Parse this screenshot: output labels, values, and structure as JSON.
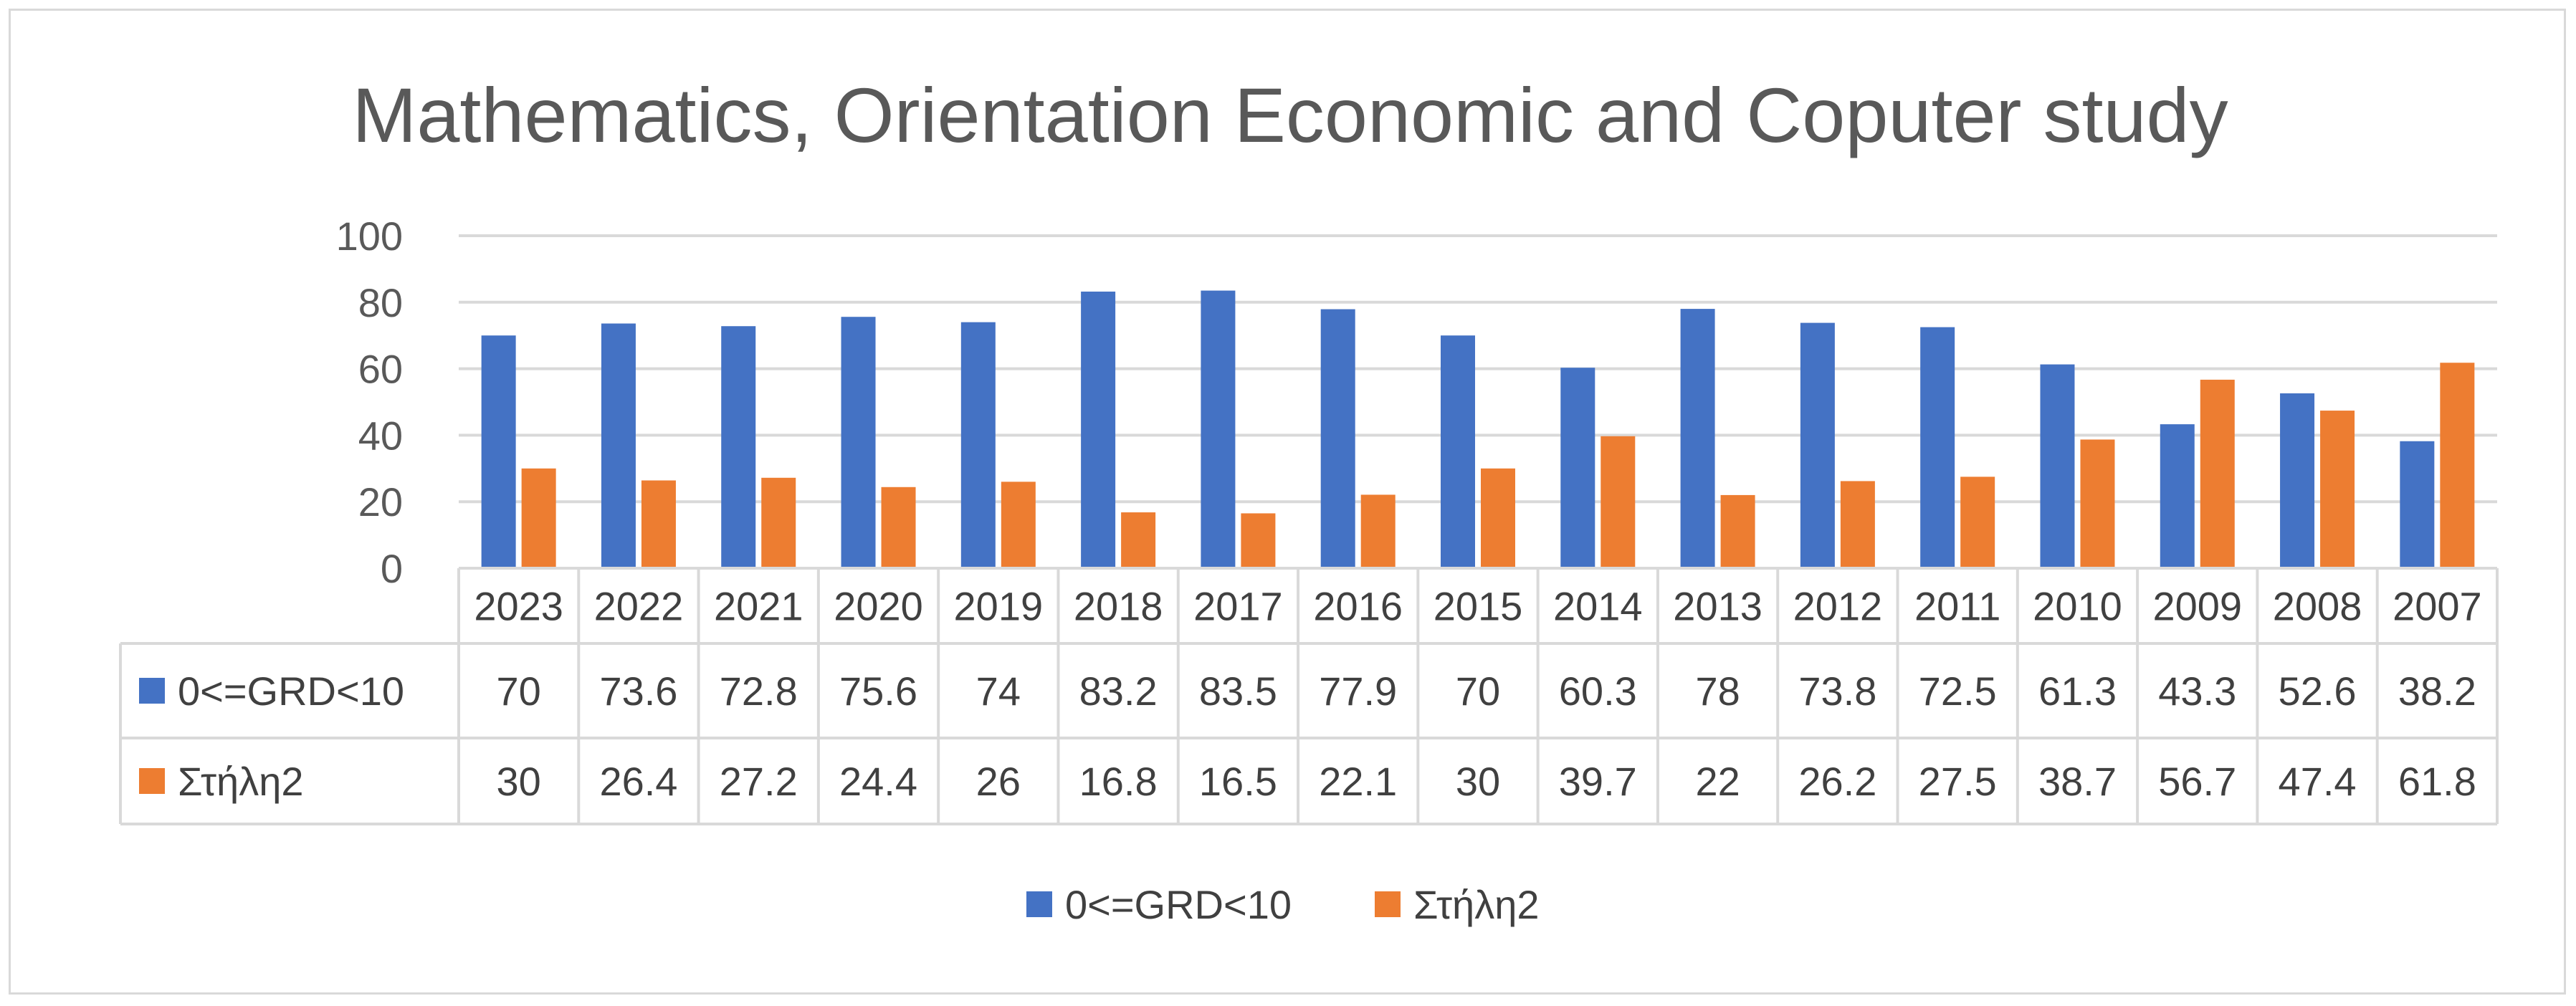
{
  "chart_data": {
    "type": "bar",
    "title": "Mathematics, Orientation Economic and Coputer study",
    "categories": [
      "2023",
      "2022",
      "2021",
      "2020",
      "2019",
      "2018",
      "2017",
      "2016",
      "2015",
      "2014",
      "2013",
      "2012",
      "2011",
      "2010",
      "2009",
      "2008",
      "2007"
    ],
    "series": [
      {
        "name": "0<=GRD<10",
        "color": "#4472c4",
        "values": [
          70,
          73.6,
          72.8,
          75.6,
          74,
          83.2,
          83.5,
          77.9,
          70,
          60.3,
          78,
          73.8,
          72.5,
          61.3,
          43.3,
          52.6,
          38.2
        ]
      },
      {
        "name": "Στήλη2",
        "color": "#ed7d31",
        "values": [
          30,
          26.4,
          27.2,
          24.4,
          26,
          16.8,
          16.5,
          22.1,
          30,
          39.7,
          22,
          26.2,
          27.5,
          38.7,
          56.7,
          47.4,
          61.8
        ]
      }
    ],
    "ylim": [
      0,
      100
    ],
    "yticks": [
      0,
      20,
      40,
      60,
      80,
      100
    ],
    "grid": true,
    "legend_position": "bottom",
    "data_table": true
  }
}
